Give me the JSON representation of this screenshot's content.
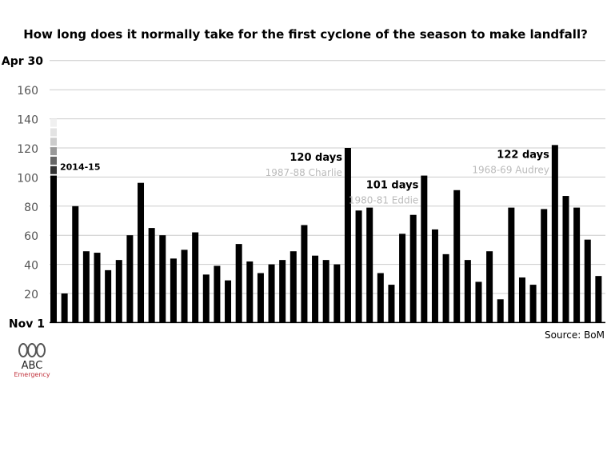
{
  "chart_data": {
    "type": "bar",
    "title": "How long does it normally take for the first cyclone of the season to make landfall?",
    "y_ticks": [
      20,
      40,
      60,
      80,
      100,
      120,
      140,
      160
    ],
    "y_bottom_label": "Nov 1",
    "y_top_label": "Apr 30",
    "ylim": [
      0,
      180
    ],
    "grid": true,
    "values": [
      101,
      20,
      80,
      49,
      48,
      36,
      43,
      60,
      96,
      65,
      60,
      44,
      50,
      62,
      33,
      39,
      29,
      54,
      42,
      34,
      40,
      43,
      49,
      67,
      46,
      43,
      40,
      120,
      77,
      79,
      34,
      26,
      61,
      74,
      101,
      64,
      47,
      91,
      43,
      28,
      49,
      16,
      79,
      31,
      26,
      78,
      122,
      87,
      79,
      57,
      32
    ],
    "current_season": {
      "label": "2014-15",
      "value": 101,
      "fade_to": 140,
      "fade_colors": [
        "#333333",
        "#666666",
        "#999999",
        "#cccccc",
        "#e3e3e3",
        "#f0f0f0"
      ]
    },
    "annotations": [
      {
        "bar_index": 27,
        "days": "120 days",
        "name": "1987-88 Charlie"
      },
      {
        "bar_index": 34,
        "days": "101 days",
        "name": "1980-81 Eddie"
      },
      {
        "bar_index": 46,
        "days": "122 days",
        "name": "1968-69 Audrey"
      }
    ],
    "source": "Source: BoM",
    "colors": {
      "bar": "#000000",
      "grid": "#cccccc",
      "note": "#bbbbbb"
    }
  },
  "logo": {
    "text": "ABC",
    "subtext": "Emergency"
  }
}
